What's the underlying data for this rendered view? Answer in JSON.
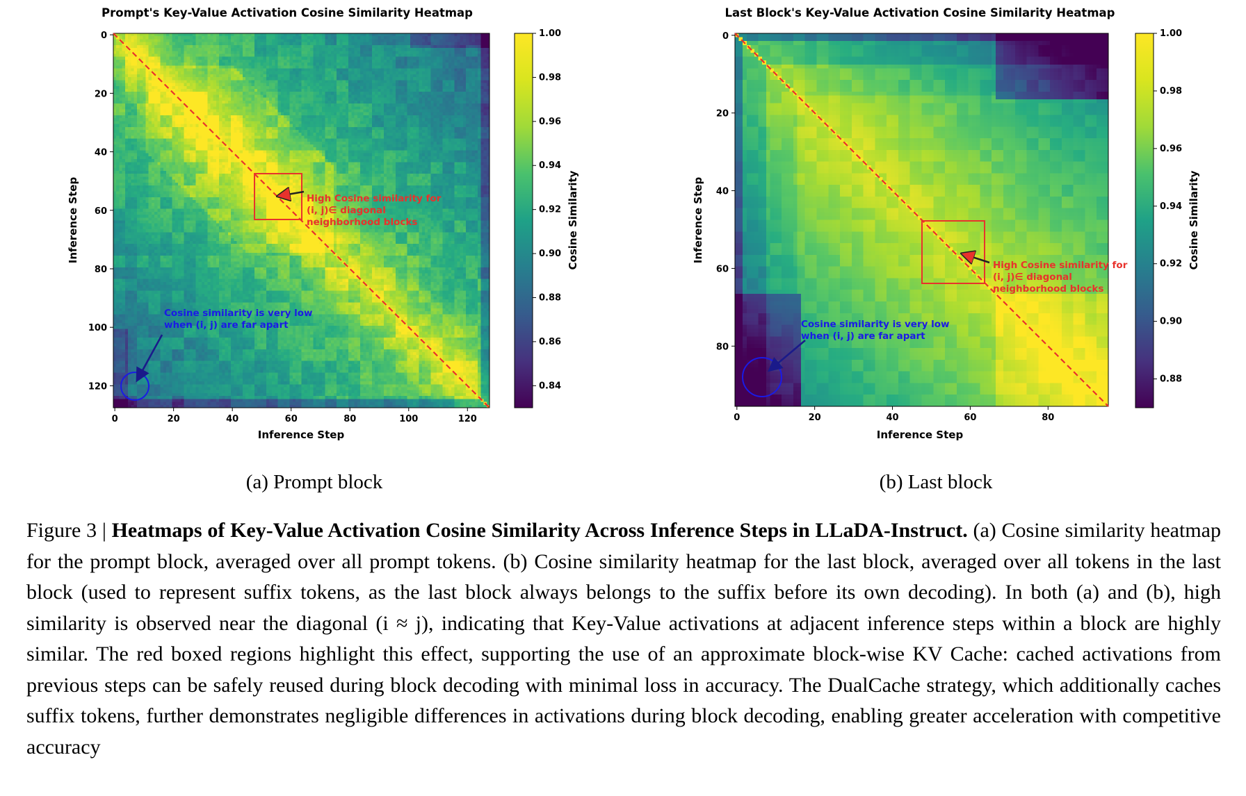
{
  "chart_data": [
    {
      "type": "heatmap",
      "title": "Prompt's Key-Value Activation Cosine Similarity Heatmap",
      "xlabel": "Inference Step",
      "ylabel": "Inference Step",
      "n": 128,
      "xlim": [
        0,
        128
      ],
      "ylim": [
        128,
        0
      ],
      "x_ticks": [
        "0",
        "20",
        "40",
        "60",
        "80",
        "100",
        "120"
      ],
      "y_ticks": [
        "0",
        "20",
        "40",
        "60",
        "80",
        "100",
        "120"
      ],
      "colorbar": {
        "label": "Cosine Similarity",
        "range": [
          0.83,
          1.0
        ],
        "ticks": [
          "1.00",
          "0.98",
          "0.96",
          "0.94",
          "0.92",
          "0.90",
          "0.88",
          "0.86",
          "0.84"
        ]
      },
      "highlight_box": {
        "i": [
          48,
          64
        ],
        "j": [
          48,
          64
        ]
      },
      "annotation_high": {
        "lines": [
          "High Cosine similarity for",
          "(i, j)∈ diagonal",
          "neighborhood blocks"
        ]
      },
      "annotation_low": {
        "lines": [
          "Cosine similarity is very low",
          "when (i, j) are far apart"
        ],
        "circle_at": [
          7,
          121
        ]
      }
    },
    {
      "type": "heatmap",
      "title": "Last Block's Key-Value Activation Cosine Similarity Heatmap",
      "xlabel": "Inference Step",
      "ylabel": "Inference Step",
      "n": 96,
      "xlim": [
        0,
        96
      ],
      "ylim": [
        96,
        0
      ],
      "x_ticks": [
        "0",
        "20",
        "40",
        "60",
        "80"
      ],
      "y_ticks": [
        "0",
        "20",
        "40",
        "60",
        "80"
      ],
      "colorbar": {
        "label": "Cosine Similarity",
        "range": [
          0.87,
          1.0
        ],
        "ticks": [
          "1.00",
          "0.98",
          "0.96",
          "0.94",
          "0.92",
          "0.90",
          "0.88"
        ]
      },
      "highlight_box": {
        "i": [
          48,
          64
        ],
        "j": [
          48,
          64
        ]
      },
      "annotation_high": {
        "lines": [
          "High Cosine similarity for",
          "(i, j)∈ diagonal",
          "neighborhood blocks"
        ]
      },
      "annotation_low": {
        "lines": [
          "Cosine similarity is very low",
          "when (i, j) are far apart"
        ],
        "circle_at": [
          7,
          89
        ]
      }
    }
  ],
  "subcaptions": [
    "(a) Prompt block",
    "(b) Last block"
  ],
  "caption": {
    "label": "Figure 3 | ",
    "title": "Heatmaps of Key-Value Activation Cosine Similarity Across Inference Steps in LLaDA-Instruct.",
    "body": " (a) Cosine similarity heatmap for the prompt block, averaged over all prompt tokens. (b) Cosine similarity heatmap for the last block, averaged over all tokens in the last block (used to represent suffix tokens, as the last block always belongs to the suffix before its own decoding). In both (a) and (b), high similarity is observed near the diagonal (i ≈ j), indicating that Key-Value activations at adjacent inference steps within a block are highly similar. The red boxed regions highlight this effect, supporting the use of an approximate block-wise KV Cache: cached activations from previous steps can be safely reused during block decoding with minimal loss in accuracy. The DualCache strategy, which additionally caches suffix tokens, further demonstrates negligible differences in activations during block decoding, enabling greater acceleration with competitive accuracy"
  }
}
